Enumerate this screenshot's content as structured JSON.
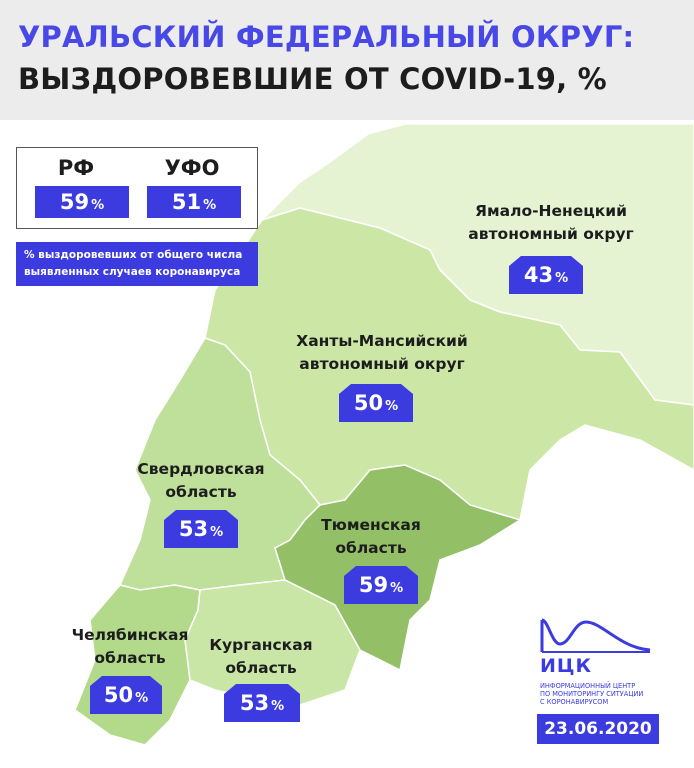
{
  "header": {
    "title_line1": "УРАЛЬСКИЙ ФЕДЕРАЛЬНЫЙ ОКРУГ:",
    "title_line2": "ВЫЗДОРОВЕВШИЕ ОТ COVID-19, %"
  },
  "legend": {
    "rf_label": "РФ",
    "rf_value": "59",
    "ufo_label": "УФО",
    "ufo_value": "51",
    "percent_sign": "%",
    "note_line1": "% выздоровевших от общего числа",
    "note_line2": "выявленных случаев коронавируса"
  },
  "regions": {
    "yamal": {
      "line1": "Ямало-Ненецкий",
      "line2": "автономный округ",
      "value": "43"
    },
    "khanty": {
      "line1": "Ханты-Мансийский",
      "line2": "автономный округ",
      "value": "50"
    },
    "sverdlovsk": {
      "line1": "Свердловская",
      "line2": "область",
      "value": "53"
    },
    "tyumen": {
      "line1": "Тюменская",
      "line2": "область",
      "value": "59"
    },
    "chelyabinsk": {
      "line1": "Челябинская",
      "line2": "область",
      "value": "50"
    },
    "kurgan": {
      "line1": "Курганская",
      "line2": "область",
      "value": "53"
    }
  },
  "logo": {
    "name": "ИЦК",
    "sub_line1": "Информационный центр",
    "sub_line2": "по мониторингу ситуации",
    "sub_line3": "с коронавирусом"
  },
  "date": "23.06.2020",
  "colors": {
    "accent": "#3b3be0",
    "yamal": "#e6f3d3",
    "khanty": "#cce6a6",
    "sverdlovsk": "#bfe09a",
    "tyumen": "#93bf66",
    "chelyabinsk": "#b3da8b",
    "kurgan": "#c9e6a6"
  }
}
